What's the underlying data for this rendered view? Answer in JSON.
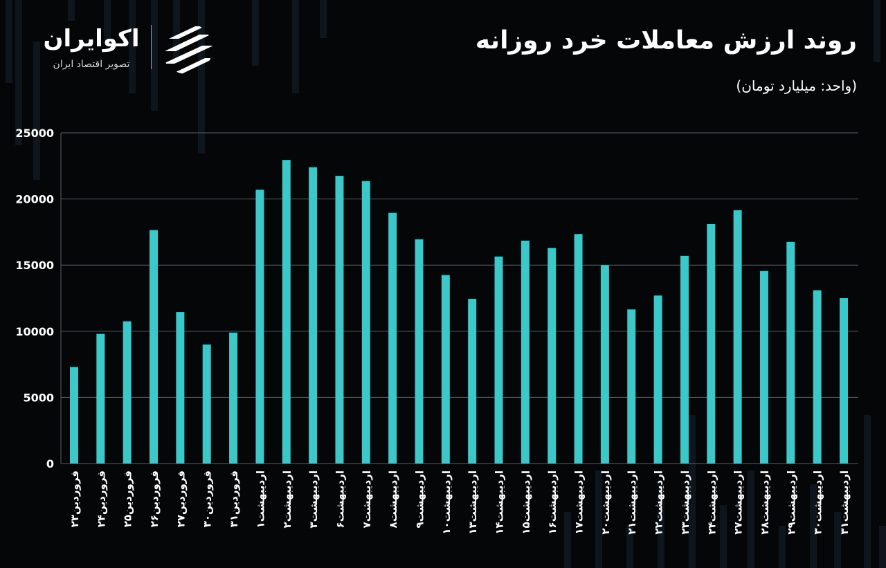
{
  "header": {
    "title": "روند ارزش معاملات خرد روزانه",
    "unit": "(واحد: میلیارد تومان)"
  },
  "brand": {
    "name": "اکوایران",
    "tagline": "تصویر اقتصاد ایران",
    "logo_icon": "ecoiran-logo-icon"
  },
  "colors": {
    "bar": "#3cc7c9",
    "grid": "#5a5f66",
    "background": "#050608",
    "text": "#ffffff"
  },
  "chart_data": {
    "type": "bar",
    "grid": true,
    "ylim": [
      0,
      25000
    ],
    "yticks": [
      0,
      5000,
      10000,
      15000,
      20000,
      25000
    ],
    "ytick_labels": [
      "0",
      "5000",
      "10000",
      "15000",
      "20000",
      "25000"
    ],
    "categories": [
      "فروردین۲۳",
      "فروردین۲۴",
      "فروردین۲۵",
      "فروردین۲۶",
      "فروردین۲۷",
      "فروردین۳۰",
      "فروردین۳۱",
      "اردیبهشت۱",
      "اردیبهشت۲",
      "اردیبهشت۳",
      "اردیبهشت۶",
      "اردیبهشت۷",
      "اردیبهشت۸",
      "اردیبهشت۹",
      "اردیبهشت۱۰",
      "اردیبهشت۱۳",
      "اردیبهشت۱۴",
      "اردیبهشت۱۵",
      "اردیبهشت۱۶",
      "اردیبهشت۱۷",
      "اردیبهشت۲۰",
      "اردیبهشت۲۱",
      "اردیبهشت۲۲",
      "اردیبهشت۲۳",
      "اردیبهشت۲۴",
      "اردیبهشت۲۷",
      "اردیبهشت۲۸",
      "اردیبهشت۲۹",
      "اردیبهشت۳۰",
      "اردیبهشت۳۱"
    ],
    "values": [
      7300,
      9800,
      10750,
      17650,
      11450,
      9000,
      9900,
      20700,
      22950,
      22400,
      21750,
      21350,
      18950,
      16950,
      14250,
      12450,
      15650,
      16850,
      16300,
      17350,
      15000,
      11650,
      12700,
      15700,
      18100,
      19150,
      14550,
      16750,
      13100,
      12500
    ]
  }
}
